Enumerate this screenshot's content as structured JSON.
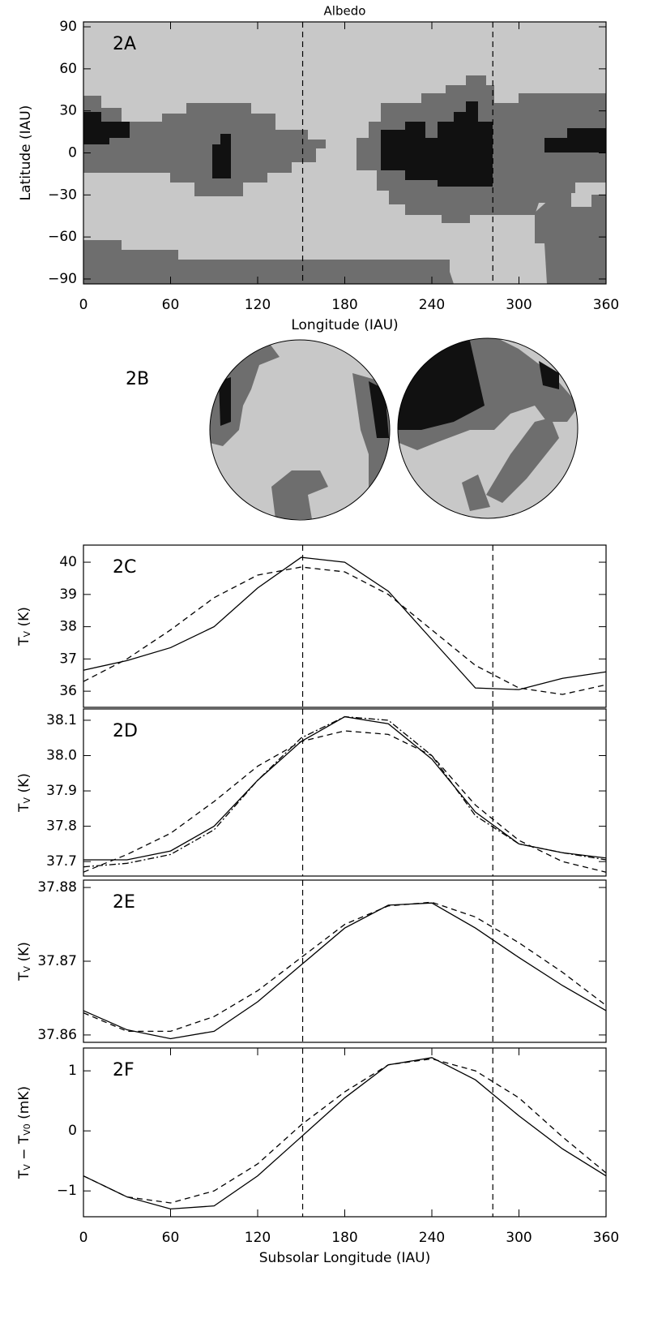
{
  "chart_data": [
    {
      "type": "map",
      "title": "Albedo",
      "annotation": "2A",
      "xlabel": "Longitude (IAU)",
      "ylabel": "Latitude (IAU)",
      "xlim": [
        0,
        360
      ],
      "ylim": [
        -93.5,
        93.5
      ],
      "xticks": [
        0,
        60,
        120,
        180,
        240,
        300,
        360
      ],
      "yticks": [
        {
          "value": -90,
          "label": "−90"
        },
        {
          "value": -60,
          "label": "−60"
        },
        {
          "value": -30,
          "label": "−30"
        },
        0,
        30,
        60,
        90
      ],
      "vlines": [
        151,
        282
      ]
    },
    {
      "type": "globes",
      "annotation": "2B"
    },
    {
      "type": "line",
      "annotation": "2C",
      "y_label_parts": [
        "T",
        "V",
        " (K)"
      ],
      "x": [
        0,
        30,
        60,
        90,
        120,
        150,
        180,
        210,
        240,
        270,
        300,
        330,
        360
      ],
      "xlim": [
        0,
        360
      ],
      "ylim": [
        35.5,
        40.53
      ],
      "yticks": [
        36,
        37,
        38,
        39,
        40
      ],
      "vlines": [
        151,
        282
      ],
      "series": [
        {
          "color": "#000000",
          "dash": "solid",
          "values": [
            36.65,
            36.95,
            37.35,
            38.0,
            39.2,
            40.15,
            40.0,
            39.1,
            37.6,
            36.1,
            36.05,
            36.4,
            36.6
          ]
        },
        {
          "color": "#000000",
          "dash": "dashed",
          "values": [
            36.3,
            37.0,
            37.9,
            38.9,
            39.6,
            39.85,
            39.7,
            39.0,
            37.9,
            36.8,
            36.1,
            35.9,
            36.2
          ]
        }
      ]
    },
    {
      "type": "line",
      "annotation": "2D",
      "y_label_parts": [
        "T",
        "V",
        " (K)"
      ],
      "x": [
        0,
        30,
        60,
        90,
        120,
        150,
        180,
        210,
        240,
        270,
        300,
        330,
        360
      ],
      "xlim": [
        0,
        360
      ],
      "ylim": [
        37.659,
        38.132
      ],
      "yticks": [
        37.7,
        37.8,
        37.9,
        {
          "value": 38.0,
          "label": "38.0"
        },
        38.1
      ],
      "vlines": [
        151,
        282
      ],
      "series": [
        {
          "color": "#000000",
          "dash": "solid",
          "values": [
            37.705,
            37.705,
            37.73,
            37.8,
            37.93,
            38.04,
            38.11,
            38.09,
            37.99,
            37.84,
            37.75,
            37.725,
            37.71
          ]
        },
        {
          "color": "#000000",
          "dash": "dashed",
          "values": [
            37.67,
            37.72,
            37.78,
            37.87,
            37.97,
            38.04,
            38.07,
            38.06,
            38.0,
            37.86,
            37.76,
            37.7,
            37.67
          ]
        },
        {
          "color": "#000000",
          "dash": "dashdot",
          "values": [
            37.685,
            37.695,
            37.72,
            37.79,
            37.93,
            38.05,
            38.11,
            38.1,
            38.0,
            37.83,
            37.75,
            37.725,
            37.705
          ]
        }
      ]
    },
    {
      "type": "line",
      "annotation": "2E",
      "y_label_parts": [
        "T",
        "V",
        " (K)"
      ],
      "x": [
        0,
        30,
        60,
        90,
        120,
        150,
        180,
        210,
        240,
        270,
        300,
        330,
        360
      ],
      "xlim": [
        0,
        360
      ],
      "ylim": [
        37.859,
        37.881
      ],
      "yticks": [
        37.86,
        37.87,
        37.88
      ],
      "vlines": [
        151,
        282
      ],
      "series": [
        {
          "color": "#000000",
          "dash": "solid",
          "values": [
            37.8633,
            37.8607,
            37.8595,
            37.8605,
            37.8645,
            37.8695,
            37.8745,
            37.8776,
            37.8779,
            37.8745,
            37.8705,
            37.8667,
            37.8633
          ]
        },
        {
          "color": "#000000",
          "dash": "dashed",
          "values": [
            37.863,
            37.8605,
            37.8605,
            37.8625,
            37.866,
            37.8705,
            37.875,
            37.8775,
            37.878,
            37.876,
            37.8725,
            37.8685,
            37.864
          ]
        }
      ]
    },
    {
      "type": "line",
      "annotation": "2F",
      "y_label_parts": [
        "T",
        "V",
        " − T",
        "V0",
        " (mK)"
      ],
      "xlabel": "Subsolar Longitude (IAU)",
      "x": [
        0,
        30,
        60,
        90,
        120,
        150,
        180,
        210,
        240,
        270,
        300,
        330,
        360
      ],
      "xlim": [
        0,
        360
      ],
      "xticks": [
        0,
        60,
        120,
        180,
        240,
        300,
        360
      ],
      "ylim": [
        -1.43,
        1.38
      ],
      "yticks": [
        {
          "value": -1,
          "label": "−1"
        },
        0,
        1
      ],
      "vlines": [
        151,
        282
      ],
      "series": [
        {
          "color": "#000000",
          "dash": "solid",
          "values": [
            -0.75,
            -1.1,
            -1.3,
            -1.25,
            -0.75,
            -0.1,
            0.55,
            1.1,
            1.22,
            0.85,
            0.25,
            -0.3,
            -0.75
          ]
        },
        {
          "color": "#000000",
          "dash": "dashed",
          "values": [
            -0.75,
            -1.1,
            -1.2,
            -1.0,
            -0.55,
            0.1,
            0.65,
            1.1,
            1.2,
            1.0,
            0.55,
            -0.1,
            -0.7
          ]
        }
      ]
    }
  ]
}
